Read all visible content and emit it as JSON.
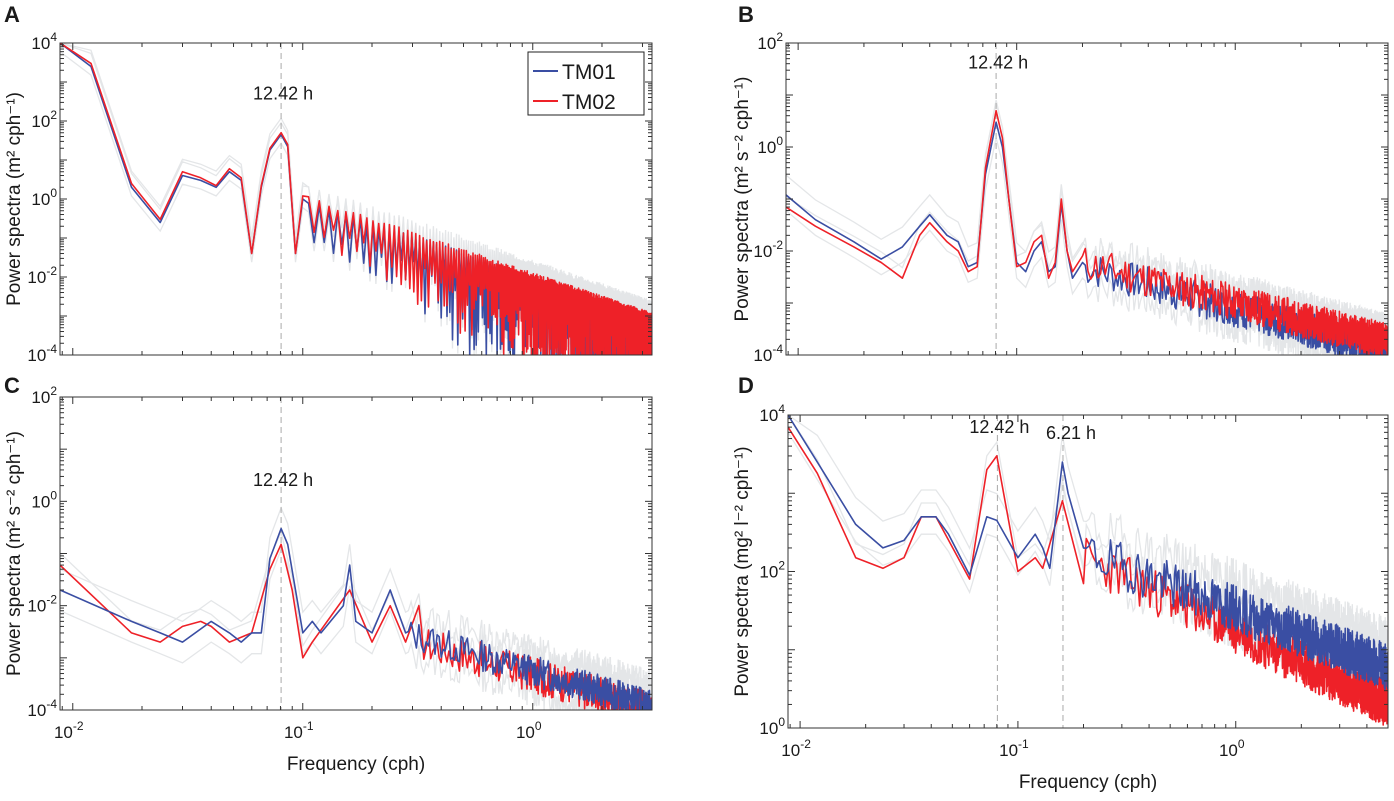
{
  "colors": {
    "TM01": "#3a4ea3",
    "TM02": "#ee2128",
    "envelope": "#e4e6e8",
    "vline": "#aaaaaa"
  },
  "legend": {
    "placement": "top-right",
    "entries": [
      "TM01",
      "TM02"
    ]
  },
  "chart_data": [
    {
      "type": "line",
      "panel": "A",
      "xscale": "log",
      "yscale": "log",
      "xlabel": "",
      "ylabel": "Power spectra (m² cph⁻¹)",
      "xlim": [
        0.0088,
        3.3
      ],
      "ylim": [
        0.0001,
        10000
      ],
      "ytick_exponents": [
        "4",
        "2",
        "0",
        "-2",
        "-4"
      ],
      "xtick_exponents": [],
      "annotations": [
        {
          "text": "12.42 h",
          "x": 0.0805
        }
      ],
      "vlines": [
        0.0805
      ],
      "envelope_factors": [
        0.6,
        1.8,
        2.6
      ],
      "series": [
        {
          "name": "TM01",
          "points": [
            [
              0.0088,
              10000
            ],
            [
              0.012,
              2500
            ],
            [
              0.018,
              2
            ],
            [
              0.024,
              0.25
            ],
            [
              0.03,
              4
            ],
            [
              0.036,
              3
            ],
            [
              0.042,
              2
            ],
            [
              0.048,
              5
            ],
            [
              0.054,
              3
            ],
            [
              0.06,
              0.04
            ],
            [
              0.066,
              2
            ],
            [
              0.072,
              18
            ],
            [
              0.0805,
              45
            ],
            [
              0.086,
              22
            ],
            [
              0.093,
              0.04
            ],
            [
              0.1,
              1
            ]
          ],
          "tail": {
            "mode": "comb",
            "start": 0.1,
            "end": 3.3,
            "p_start": 1,
            "p_end": 0.0009,
            "step": 0.006,
            "seed": 3
          }
        },
        {
          "name": "TM02",
          "points": [
            [
              0.0088,
              11000
            ],
            [
              0.012,
              3000
            ],
            [
              0.018,
              2.5
            ],
            [
              0.024,
              0.3
            ],
            [
              0.03,
              5
            ],
            [
              0.036,
              3.5
            ],
            [
              0.042,
              2.2
            ],
            [
              0.048,
              6
            ],
            [
              0.054,
              3.5
            ],
            [
              0.06,
              0.04
            ],
            [
              0.066,
              2.2
            ],
            [
              0.072,
              20
            ],
            [
              0.0805,
              50
            ],
            [
              0.086,
              25
            ],
            [
              0.093,
              0.04
            ],
            [
              0.1,
              1.2
            ]
          ],
          "tail": {
            "mode": "comb",
            "start": 0.1,
            "end": 3.3,
            "p_start": 1.2,
            "p_end": 0.0011,
            "step": 0.006,
            "seed": 5
          }
        }
      ]
    },
    {
      "type": "line",
      "panel": "B",
      "xscale": "log",
      "yscale": "log",
      "xlabel": "",
      "ylabel": "Power spectra (m² s⁻² cph⁻¹)",
      "xlim": [
        0.0088,
        5
      ],
      "ylim": [
        0.0001,
        100
      ],
      "ytick_exponents": [
        "2",
        "0",
        "-2",
        "-4"
      ],
      "xtick_exponents": [],
      "annotations": [
        {
          "text": "12.42 h",
          "x": 0.0805
        }
      ],
      "vlines": [
        0.0805
      ],
      "envelope_factors": [
        0.5,
        1.6,
        2.4
      ],
      "series": [
        {
          "name": "TM01",
          "points": [
            [
              0.0088,
              0.12
            ],
            [
              0.012,
              0.04
            ],
            [
              0.018,
              0.015
            ],
            [
              0.024,
              0.007
            ],
            [
              0.03,
              0.012
            ],
            [
              0.036,
              0.03
            ],
            [
              0.04,
              0.05
            ],
            [
              0.048,
              0.02
            ],
            [
              0.054,
              0.015
            ],
            [
              0.06,
              0.005
            ],
            [
              0.066,
              0.006
            ],
            [
              0.072,
              0.3
            ],
            [
              0.0805,
              3
            ],
            [
              0.086,
              1
            ],
            [
              0.092,
              0.1
            ],
            [
              0.1,
              0.006
            ],
            [
              0.11,
              0.004
            ],
            [
              0.12,
              0.01
            ],
            [
              0.13,
              0.015
            ],
            [
              0.14,
              0.004
            ],
            [
              0.15,
              0.005
            ],
            [
              0.16,
              0.08
            ],
            [
              0.17,
              0.01
            ],
            [
              0.18,
              0.003
            ],
            [
              0.2,
              0.006
            ]
          ],
          "tail": {
            "mode": "noise",
            "start": 0.2,
            "end": 5,
            "p_start": 0.005,
            "p_end": 0.00012,
            "spread": 0.7,
            "step": 0.006,
            "seed": 7
          }
        },
        {
          "name": "TM02",
          "points": [
            [
              0.0088,
              0.07
            ],
            [
              0.012,
              0.03
            ],
            [
              0.018,
              0.012
            ],
            [
              0.024,
              0.006
            ],
            [
              0.03,
              0.003
            ],
            [
              0.036,
              0.02
            ],
            [
              0.04,
              0.035
            ],
            [
              0.048,
              0.015
            ],
            [
              0.054,
              0.01
            ],
            [
              0.06,
              0.004
            ],
            [
              0.066,
              0.005
            ],
            [
              0.072,
              0.4
            ],
            [
              0.0805,
              5
            ],
            [
              0.086,
              1.5
            ],
            [
              0.092,
              0.1
            ],
            [
              0.1,
              0.005
            ],
            [
              0.11,
              0.006
            ],
            [
              0.12,
              0.015
            ],
            [
              0.13,
              0.02
            ],
            [
              0.14,
              0.003
            ],
            [
              0.15,
              0.006
            ],
            [
              0.16,
              0.1
            ],
            [
              0.17,
              0.01
            ],
            [
              0.18,
              0.004
            ],
            [
              0.2,
              0.008
            ]
          ],
          "tail": {
            "mode": "noise",
            "start": 0.2,
            "end": 5,
            "p_start": 0.006,
            "p_end": 0.00018,
            "spread": 0.7,
            "step": 0.006,
            "seed": 11
          }
        }
      ]
    },
    {
      "type": "line",
      "panel": "C",
      "xscale": "log",
      "yscale": "log",
      "xlabel": "Frequency (cph)",
      "ylabel": "Power spectra (m² s⁻² cph⁻¹)",
      "xlim": [
        0.0088,
        3.3
      ],
      "ylim": [
        0.0001,
        100
      ],
      "ytick_exponents": [
        "2",
        "0",
        "-2",
        "-4"
      ],
      "xtick_exponents": [
        "-2",
        "-1",
        "0"
      ],
      "annotations": [
        {
          "text": "12.42 h",
          "x": 0.0805
        }
      ],
      "vlines": [
        0.0805
      ],
      "envelope_factors": [
        0.4,
        1.7,
        2.5
      ],
      "series": [
        {
          "name": "TM01",
          "points": [
            [
              0.0088,
              0.02
            ],
            [
              0.018,
              0.005
            ],
            [
              0.024,
              0.003
            ],
            [
              0.03,
              0.002
            ],
            [
              0.04,
              0.005
            ],
            [
              0.048,
              0.003
            ],
            [
              0.054,
              0.002
            ],
            [
              0.06,
              0.003
            ],
            [
              0.066,
              0.003
            ],
            [
              0.072,
              0.08
            ],
            [
              0.0805,
              0.3
            ],
            [
              0.086,
              0.15
            ],
            [
              0.1,
              0.003
            ],
            [
              0.11,
              0.005
            ],
            [
              0.12,
              0.003
            ],
            [
              0.15,
              0.01
            ],
            [
              0.16,
              0.06
            ],
            [
              0.17,
              0.005
            ],
            [
              0.2,
              0.003
            ],
            [
              0.24,
              0.02
            ],
            [
              0.28,
              0.003
            ]
          ],
          "tail": {
            "mode": "noise",
            "start": 0.28,
            "end": 3.3,
            "p_start": 0.003,
            "p_end": 0.00012,
            "spread": 0.6,
            "step": 0.008,
            "seed": 13
          }
        },
        {
          "name": "TM02",
          "points": [
            [
              0.0088,
              0.06
            ],
            [
              0.018,
              0.003
            ],
            [
              0.024,
              0.002
            ],
            [
              0.03,
              0.004
            ],
            [
              0.036,
              0.005
            ],
            [
              0.04,
              0.004
            ],
            [
              0.048,
              0.002
            ],
            [
              0.06,
              0.003
            ],
            [
              0.072,
              0.05
            ],
            [
              0.0805,
              0.15
            ],
            [
              0.09,
              0.02
            ],
            [
              0.1,
              0.001
            ],
            [
              0.11,
              0.002
            ],
            [
              0.16,
              0.02
            ],
            [
              0.2,
              0.002
            ],
            [
              0.24,
              0.01
            ],
            [
              0.28,
              0.002
            ],
            [
              0.32,
              0.01
            ]
          ],
          "tail": {
            "mode": "noise",
            "start": 0.32,
            "end": 3.3,
            "p_start": 0.002,
            "p_end": 0.0001,
            "spread": 0.7,
            "step": 0.008,
            "seed": 17
          }
        }
      ]
    },
    {
      "type": "line",
      "panel": "D",
      "xscale": "log",
      "yscale": "log",
      "xlabel": "Frequency (cph)",
      "ylabel": "Power spectra (mg² l⁻² cph⁻¹)",
      "xlim": [
        0.0088,
        5
      ],
      "ylim": [
        1,
        10000
      ],
      "ytick_exponents": [
        "4",
        "2",
        "0"
      ],
      "xtick_exponents": [
        "-2",
        "-1",
        "0"
      ],
      "annotations": [
        {
          "text": "12.42 h",
          "x": 0.0805
        },
        {
          "text": "6.21 h",
          "x": 0.161
        }
      ],
      "vlines": [
        0.0805,
        0.161
      ],
      "envelope_factors": [
        0.6,
        1.5,
        2.2
      ],
      "series": [
        {
          "name": "TM01",
          "points": [
            [
              0.0088,
              10000
            ],
            [
              0.012,
              2500
            ],
            [
              0.018,
              400
            ],
            [
              0.024,
              200
            ],
            [
              0.03,
              250
            ],
            [
              0.036,
              500
            ],
            [
              0.042,
              500
            ],
            [
              0.048,
              300
            ],
            [
              0.06,
              90
            ],
            [
              0.072,
              500
            ],
            [
              0.08,
              450
            ],
            [
              0.1,
              150
            ],
            [
              0.12,
              300
            ],
            [
              0.13,
              200
            ],
            [
              0.14,
              110
            ],
            [
              0.16,
              2500
            ],
            [
              0.17,
              1000
            ],
            [
              0.2,
              200
            ]
          ],
          "tail": {
            "mode": "noise",
            "start": 0.2,
            "end": 5,
            "p_start": 180,
            "p_end": 6,
            "spread": 0.6,
            "step": 0.006,
            "seed": 19
          }
        },
        {
          "name": "TM02",
          "points": [
            [
              0.0088,
              7000
            ],
            [
              0.012,
              1800
            ],
            [
              0.018,
              150
            ],
            [
              0.024,
              110
            ],
            [
              0.03,
              150
            ],
            [
              0.036,
              500
            ],
            [
              0.042,
              500
            ],
            [
              0.06,
              80
            ],
            [
              0.072,
              2000
            ],
            [
              0.08,
              3000
            ],
            [
              0.1,
              100
            ],
            [
              0.12,
              150
            ],
            [
              0.13,
              110
            ],
            [
              0.16,
              800
            ],
            [
              0.2,
              70
            ]
          ],
          "tail": {
            "mode": "noise",
            "start": 0.2,
            "end": 5,
            "p_start": 150,
            "p_end": 2,
            "spread": 0.6,
            "step": 0.006,
            "seed": 23
          }
        }
      ]
    }
  ],
  "panel_labels": [
    "A",
    "B",
    "C",
    "D"
  ]
}
